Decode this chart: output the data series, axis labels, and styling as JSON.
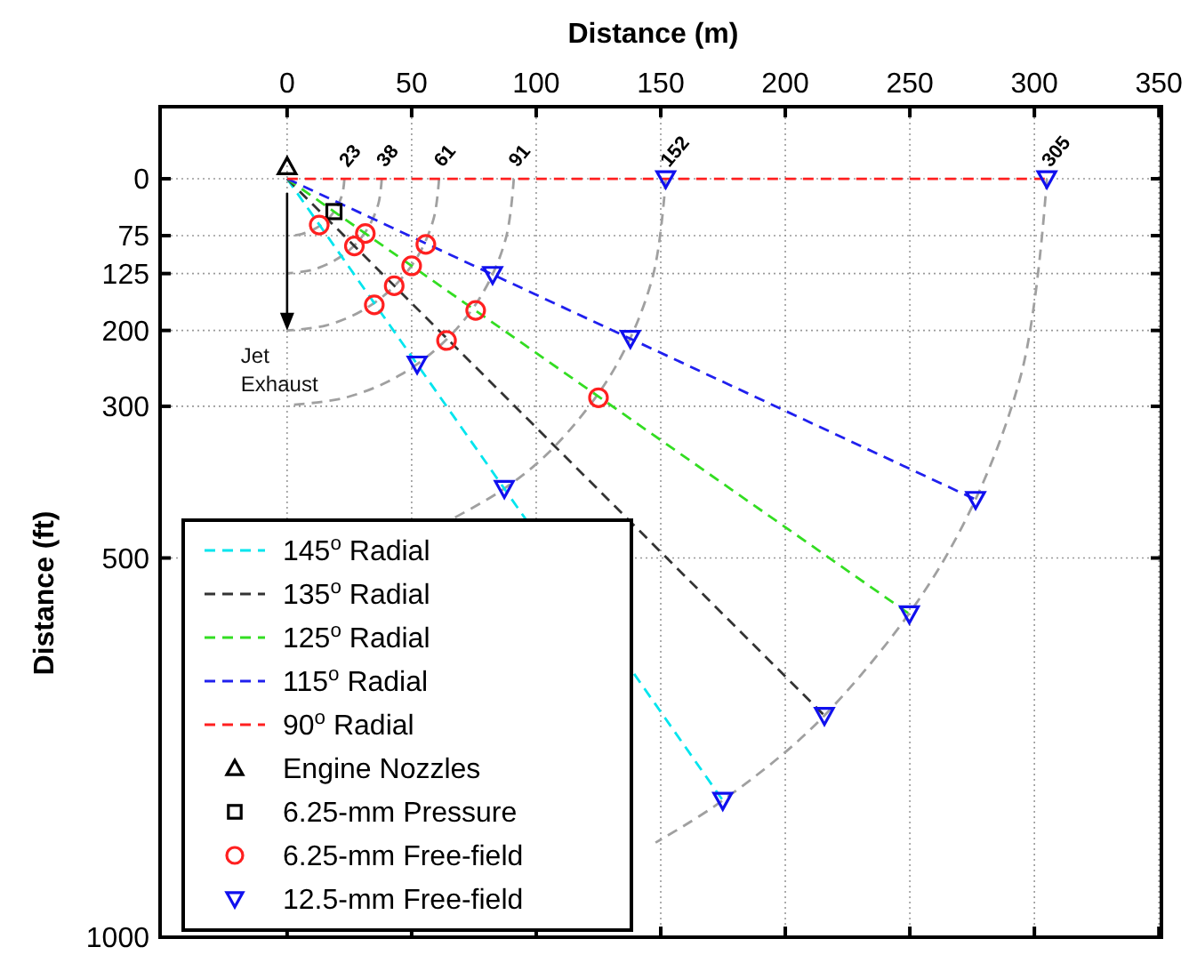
{
  "chart_data": {
    "type": "line",
    "xlabel": "Distance (m)",
    "ylabel": "Distance (ft)",
    "xlim": [
      -51,
      351
    ],
    "xticks": [
      0,
      50,
      100,
      150,
      200,
      250,
      300,
      350
    ],
    "ylim": [
      1000,
      -95
    ],
    "yticks": [
      0,
      75,
      125,
      200,
      300,
      500,
      1000
    ],
    "grid": true,
    "legend": "bottom left",
    "line_style": "dashed",
    "marker": "none",
    "series": [
      {
        "color": "#a0a0a0",
        "x": [
          23,
          22.2,
          19.9,
          16.3,
          11.5,
          6,
          0
        ],
        "values": [
          0,
          19.7,
          37.7,
          53.5,
          65.3,
          72.8,
          75.5
        ]
      },
      {
        "color": "#a0a0a0",
        "x": [
          38,
          36.7,
          32.9,
          26.9,
          19,
          9.8,
          0
        ],
        "values": [
          0,
          32.2,
          62.3,
          88.3,
          107.9,
          120.4,
          124.7
        ]
      },
      {
        "color": "#a0a0a0",
        "x": [
          61,
          58.9,
          52.8,
          43.1,
          30.5,
          15.8,
          0
        ],
        "values": [
          0,
          51.8,
          100.1,
          141.4,
          173.2,
          193.2,
          200.1
        ]
      },
      {
        "color": "#a0a0a0",
        "x": [
          91,
          87.9,
          78.8,
          64.3,
          45.5,
          23.6,
          0
        ],
        "values": [
          0,
          77.4,
          149.3,
          211,
          258.5,
          288.4,
          298.6
        ]
      },
      {
        "color": "#a0a0a0",
        "x": [
          152,
          146.8,
          131.6,
          107.5,
          87.2,
          64.2
        ],
        "values": [
          0,
          128.9,
          249.3,
          352.7,
          408.5,
          452.1
        ]
      },
      {
        "color": "#a0a0a0",
        "x": [
          305,
          294.6,
          264.1,
          215.7,
          174.9,
          147.9
        ],
        "values": [
          0,
          258.9,
          500.3,
          707.7,
          819.6,
          875.3
        ]
      },
      {
        "name": "145$^{o}$ Radial",
        "color": "#00e5ee",
        "x": [
          0,
          174.9
        ],
        "values": [
          0,
          819.6
        ]
      },
      {
        "name": "135$^{o}$ Radial",
        "color": "#333333",
        "x": [
          0,
          215.7
        ],
        "values": [
          0,
          707.7
        ]
      },
      {
        "name": "125$^{o}$ Radial",
        "color": "#33dd22",
        "x": [
          0,
          249.8
        ],
        "values": [
          0,
          573.8
        ]
      },
      {
        "name": "115$^{o}$ Radial",
        "color": "#2020ee",
        "x": [
          0,
          276.4
        ],
        "values": [
          0,
          422.9
        ]
      },
      {
        "name": "90$^{o}$ Radial",
        "color": "#ff2020",
        "x": [
          0,
          305
        ],
        "values": [
          0,
          0
        ]
      },
      {
        "name": "Engine Nozzles",
        "type": "scatter",
        "marker": "triangle",
        "color": "#000000",
        "x": [
          0
        ],
        "values": [
          -16
        ]
      },
      {
        "name": "6.25-mm Pressure",
        "type": "scatter",
        "marker": "square",
        "color": "#000000",
        "x": [
          18.8
        ],
        "values": [
          43.3
        ]
      },
      {
        "name": "6.25-mm Free-field",
        "type": "scatter",
        "marker": "circle",
        "color": "#ff2020",
        "x": [
          12.9,
          27,
          31.4,
          55.7,
          50,
          43,
          35,
          75.7,
          64,
          125
        ],
        "values": [
          61,
          88.6,
          72.2,
          86.6,
          114.8,
          141.1,
          166.3,
          173.6,
          213.3,
          288.7
        ]
      },
      {
        "name": "12.5-mm Free-field",
        "type": "scatter",
        "marker": "triangle-down",
        "color": "#1010ee",
        "x": [
          152,
          305,
          82.5,
          137.8,
          276.4,
          249.8,
          215.7,
          52.2,
          87.2,
          174.9
        ],
        "values": [
          0,
          0,
          126.3,
          210.6,
          422.9,
          573.8,
          707.7,
          244.4,
          408.5,
          819.6
        ]
      }
    ],
    "annotations": [
      {
        "text": "23",
        "x": 23,
        "y": 0
      },
      {
        "text": "38",
        "x": 38,
        "y": 0
      },
      {
        "text": "61",
        "x": 61,
        "y": 0
      },
      {
        "text": "91",
        "x": 91,
        "y": 0
      },
      {
        "text": "152",
        "x": 152,
        "y": 0
      },
      {
        "text": "305",
        "x": 305,
        "y": 0
      },
      {
        "text": "Jet Exhaust",
        "x": 0,
        "y": 200
      }
    ]
  }
}
